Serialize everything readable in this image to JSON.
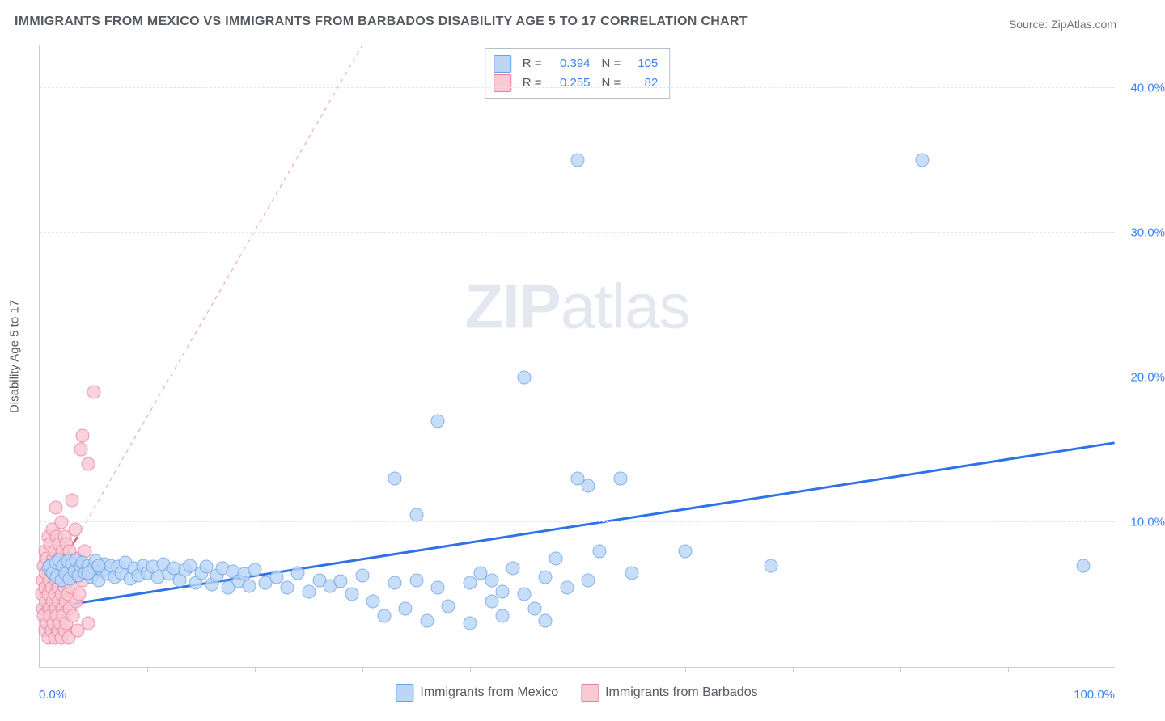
{
  "title": "IMMIGRANTS FROM MEXICO VS IMMIGRANTS FROM BARBADOS DISABILITY AGE 5 TO 17 CORRELATION CHART",
  "title_fontsize": 16,
  "source_prefix": "Source: ",
  "source_name": "ZipAtlas.com",
  "source_fontsize": 14,
  "ylabel": "Disability Age 5 to 17",
  "ylabel_fontsize": 15,
  "watermark_a": "ZIP",
  "watermark_b": "atlas",
  "xlim": [
    0,
    100
  ],
  "ylim": [
    0,
    43
  ],
  "x_tick_positions": [
    10,
    20,
    30,
    40,
    50,
    60,
    70,
    80,
    90
  ],
  "x_axis_labels": {
    "min": "0.0%",
    "max": "100.0%"
  },
  "y_gridlines": [
    10,
    20,
    30,
    40,
    43
  ],
  "y_tick_labels": [
    {
      "v": 10,
      "label": "10.0%"
    },
    {
      "v": 20,
      "label": "20.0%"
    },
    {
      "v": 30,
      "label": "30.0%"
    },
    {
      "v": 40,
      "label": "40.0%"
    }
  ],
  "chart_colors": {
    "axis": "#c7ccd1",
    "grid": "#e2e5e9",
    "tick_text": "#3b82f6",
    "label_text": "#555a60",
    "background": "#ffffff"
  },
  "series": [
    {
      "id": "mexico",
      "legend_label": "Immigrants from Mexico",
      "marker_fill": "#bcd6f7",
      "marker_stroke": "#6aa4e8",
      "marker_radius": 8.5,
      "marker_opacity": 0.82,
      "swatch_fill": "#bcd6f7",
      "swatch_stroke": "#6aa4e8",
      "R": "0.394",
      "N": "105",
      "trend": {
        "x1": 0,
        "y1": 4.0,
        "x2": 100,
        "y2": 15.5,
        "color": "#2e72e8",
        "width": 3,
        "dash": "none"
      },
      "points": [
        [
          0.8,
          6.8
        ],
        [
          1.0,
          7.0
        ],
        [
          1.2,
          6.5
        ],
        [
          1.5,
          7.2
        ],
        [
          1.6,
          6.2
        ],
        [
          1.8,
          7.4
        ],
        [
          2.0,
          6.0
        ],
        [
          2.2,
          7.0
        ],
        [
          2.4,
          6.4
        ],
        [
          2.6,
          7.3
        ],
        [
          2.8,
          6.1
        ],
        [
          3.0,
          7.1
        ],
        [
          3.2,
          6.6
        ],
        [
          3.4,
          7.4
        ],
        [
          3.6,
          6.3
        ],
        [
          3.8,
          6.9
        ],
        [
          4.0,
          7.2
        ],
        [
          4.2,
          6.5
        ],
        [
          4.5,
          7.0
        ],
        [
          4.8,
          6.2
        ],
        [
          5.0,
          6.8
        ],
        [
          5.2,
          7.3
        ],
        [
          5.5,
          6.0
        ],
        [
          5.8,
          6.7
        ],
        [
          6.0,
          7.1
        ],
        [
          6.3,
          6.4
        ],
        [
          6.6,
          7.0
        ],
        [
          7.0,
          6.2
        ],
        [
          7.3,
          6.9
        ],
        [
          7.6,
          6.5
        ],
        [
          8.0,
          7.2
        ],
        [
          8.4,
          6.1
        ],
        [
          8.8,
          6.8
        ],
        [
          9.2,
          6.3
        ],
        [
          9.6,
          7.0
        ],
        [
          10.0,
          6.5
        ],
        [
          10.5,
          6.9
        ],
        [
          11.0,
          6.2
        ],
        [
          11.5,
          7.1
        ],
        [
          12.0,
          6.4
        ],
        [
          12.5,
          6.8
        ],
        [
          13.0,
          6.0
        ],
        [
          13.5,
          6.7
        ],
        [
          14.0,
          7.0
        ],
        [
          14.5,
          5.8
        ],
        [
          15.0,
          6.5
        ],
        [
          15.5,
          6.9
        ],
        [
          16.0,
          5.7
        ],
        [
          16.5,
          6.3
        ],
        [
          17.0,
          6.8
        ],
        [
          17.5,
          5.5
        ],
        [
          18.0,
          6.6
        ],
        [
          18.5,
          5.9
        ],
        [
          19.0,
          6.4
        ],
        [
          19.5,
          5.6
        ],
        [
          20.0,
          6.7
        ],
        [
          21.0,
          5.8
        ],
        [
          22.0,
          6.2
        ],
        [
          23.0,
          5.5
        ],
        [
          24.0,
          6.5
        ],
        [
          25.0,
          5.2
        ],
        [
          26.0,
          6.0
        ],
        [
          27.0,
          5.6
        ],
        [
          28.0,
          5.9
        ],
        [
          29.0,
          5.0
        ],
        [
          30.0,
          6.3
        ],
        [
          31.0,
          4.5
        ],
        [
          32.0,
          3.5
        ],
        [
          33.0,
          5.8
        ],
        [
          33.0,
          13.0
        ],
        [
          34.0,
          4.0
        ],
        [
          35.0,
          6.0
        ],
        [
          35.0,
          10.5
        ],
        [
          36.0,
          3.2
        ],
        [
          37.0,
          5.5
        ],
        [
          37.0,
          17.0
        ],
        [
          38.0,
          4.2
        ],
        [
          40.0,
          5.8
        ],
        [
          40.0,
          3.0
        ],
        [
          41.0,
          6.5
        ],
        [
          42.0,
          4.5
        ],
        [
          42.0,
          6.0
        ],
        [
          43.0,
          5.2
        ],
        [
          43.0,
          3.5
        ],
        [
          44.0,
          6.8
        ],
        [
          45.0,
          5.0
        ],
        [
          45.0,
          20.0
        ],
        [
          46.0,
          4.0
        ],
        [
          47.0,
          6.2
        ],
        [
          47.0,
          3.2
        ],
        [
          48.0,
          7.5
        ],
        [
          49.0,
          5.5
        ],
        [
          50.0,
          35.0
        ],
        [
          50.0,
          13.0
        ],
        [
          51.0,
          6.0
        ],
        [
          51.0,
          12.5
        ],
        [
          52.0,
          8.0
        ],
        [
          54.0,
          13.0
        ],
        [
          55.0,
          6.5
        ],
        [
          60.0,
          8.0
        ],
        [
          68.0,
          7.0
        ],
        [
          82.0,
          35.0
        ],
        [
          97.0,
          7.0
        ],
        [
          4.5,
          6.5
        ],
        [
          5.5,
          7.0
        ]
      ]
    },
    {
      "id": "barbados",
      "legend_label": "Immigrants from Barbados",
      "marker_fill": "#f9c9d4",
      "marker_stroke": "#ec7fa0",
      "marker_radius": 8.5,
      "marker_opacity": 0.82,
      "swatch_fill": "#f9c9d4",
      "swatch_stroke": "#ec7fa0",
      "R": "0.255",
      "N": "82",
      "trend": {
        "x1": 0,
        "y1": 5.0,
        "x2": 3.5,
        "y2": 9.0,
        "color": "#e8517c",
        "width": 2.5,
        "dash": "none"
      },
      "trend_ext": {
        "x1": 3.5,
        "y1": 9.0,
        "x2": 30,
        "y2": 43,
        "color": "#f4aabe",
        "width": 1.2,
        "dash": "5,5"
      },
      "points": [
        [
          0.2,
          5.0
        ],
        [
          0.3,
          6.0
        ],
        [
          0.3,
          4.0
        ],
        [
          0.4,
          7.0
        ],
        [
          0.4,
          3.5
        ],
        [
          0.5,
          5.5
        ],
        [
          0.5,
          8.0
        ],
        [
          0.5,
          2.5
        ],
        [
          0.6,
          6.5
        ],
        [
          0.6,
          4.5
        ],
        [
          0.7,
          7.5
        ],
        [
          0.7,
          3.0
        ],
        [
          0.8,
          5.0
        ],
        [
          0.8,
          9.0
        ],
        [
          0.8,
          2.0
        ],
        [
          0.9,
          6.0
        ],
        [
          0.9,
          4.0
        ],
        [
          1.0,
          7.0
        ],
        [
          1.0,
          3.5
        ],
        [
          1.0,
          8.5
        ],
        [
          1.1,
          5.5
        ],
        [
          1.1,
          2.5
        ],
        [
          1.2,
          6.5
        ],
        [
          1.2,
          4.5
        ],
        [
          1.2,
          9.5
        ],
        [
          1.3,
          3.0
        ],
        [
          1.3,
          7.5
        ],
        [
          1.4,
          5.0
        ],
        [
          1.4,
          8.0
        ],
        [
          1.4,
          2.0
        ],
        [
          1.5,
          11.0
        ],
        [
          1.5,
          6.0
        ],
        [
          1.5,
          4.0
        ],
        [
          1.6,
          7.0
        ],
        [
          1.6,
          3.5
        ],
        [
          1.6,
          9.0
        ],
        [
          1.7,
          5.5
        ],
        [
          1.7,
          2.5
        ],
        [
          1.8,
          6.5
        ],
        [
          1.8,
          8.5
        ],
        [
          1.8,
          4.5
        ],
        [
          1.9,
          3.0
        ],
        [
          1.9,
          7.5
        ],
        [
          2.0,
          5.0
        ],
        [
          2.0,
          10.0
        ],
        [
          2.0,
          2.0
        ],
        [
          2.1,
          6.0
        ],
        [
          2.1,
          8.0
        ],
        [
          2.1,
          4.0
        ],
        [
          2.2,
          7.0
        ],
        [
          2.2,
          3.5
        ],
        [
          2.3,
          5.5
        ],
        [
          2.3,
          9.0
        ],
        [
          2.3,
          2.5
        ],
        [
          2.4,
          6.5
        ],
        [
          2.4,
          4.5
        ],
        [
          2.5,
          8.5
        ],
        [
          2.5,
          3.0
        ],
        [
          2.6,
          7.5
        ],
        [
          2.6,
          5.0
        ],
        [
          2.7,
          6.0
        ],
        [
          2.7,
          2.0
        ],
        [
          2.8,
          8.0
        ],
        [
          2.8,
          4.0
        ],
        [
          2.9,
          7.0
        ],
        [
          3.0,
          11.5
        ],
        [
          3.0,
          5.5
        ],
        [
          3.1,
          3.5
        ],
        [
          3.2,
          6.5
        ],
        [
          3.3,
          9.5
        ],
        [
          3.4,
          4.5
        ],
        [
          3.5,
          7.5
        ],
        [
          3.5,
          2.5
        ],
        [
          3.7,
          5.0
        ],
        [
          3.8,
          15.0
        ],
        [
          4.0,
          16.0
        ],
        [
          4.0,
          6.0
        ],
        [
          4.2,
          8.0
        ],
        [
          4.5,
          14.0
        ],
        [
          4.5,
          3.0
        ],
        [
          5.0,
          19.0
        ],
        [
          5.0,
          6.5
        ]
      ]
    }
  ],
  "stats_legend": {
    "R_label": "R =",
    "N_label": "N ="
  }
}
